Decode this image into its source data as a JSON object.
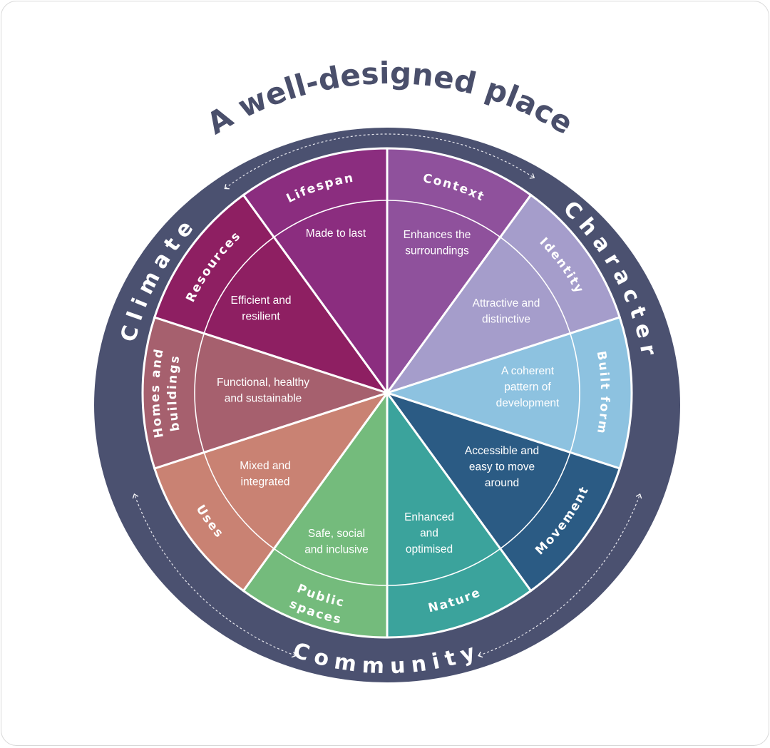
{
  "title": "A well-designed place",
  "ring_color": "#4b5170",
  "title_color": "#4a4f6b",
  "themes": {
    "climate": "Climate",
    "character": "Character",
    "community": "Community"
  },
  "sectors": [
    {
      "name": "Context",
      "name_lines": [
        "Context"
      ],
      "description": [
        "Enhances the",
        "surroundings"
      ],
      "color": "#8f519c"
    },
    {
      "name": "Identity",
      "name_lines": [
        "Identity"
      ],
      "description": [
        "Attractive and",
        "distinctive"
      ],
      "color": "#a59dcb"
    },
    {
      "name": "Built form",
      "name_lines": [
        "Built form"
      ],
      "description": [
        "A coherent",
        "pattern of",
        "development"
      ],
      "color": "#8dc2e0"
    },
    {
      "name": "Movement",
      "name_lines": [
        "Movement"
      ],
      "description": [
        "Accessible and",
        "easy to move",
        "around"
      ],
      "color": "#2b5b84"
    },
    {
      "name": "Nature",
      "name_lines": [
        "Nature"
      ],
      "description": [
        "Enhanced",
        "and",
        "optimised"
      ],
      "color": "#3ba39c"
    },
    {
      "name": "Public spaces",
      "name_lines": [
        "Public",
        "spaces"
      ],
      "description": [
        "Safe, social",
        "and inclusive"
      ],
      "color": "#74bb7c"
    },
    {
      "name": "Uses",
      "name_lines": [
        "Uses"
      ],
      "description": [
        "Mixed and",
        "integrated"
      ],
      "color": "#c98273"
    },
    {
      "name": "Homes and buildings",
      "name_lines": [
        "Homes and",
        "buildings"
      ],
      "description": [
        "Functional, healthy",
        "and sustainable"
      ],
      "color": "#a6606e"
    },
    {
      "name": "Resources",
      "name_lines": [
        "Resources"
      ],
      "description": [
        "Efficient and",
        "resilient"
      ],
      "color": "#8e1f62"
    },
    {
      "name": "Lifespan",
      "name_lines": [
        "Lifespan"
      ],
      "description": [
        "Made to last"
      ],
      "color": "#8b2d7f"
    }
  ]
}
